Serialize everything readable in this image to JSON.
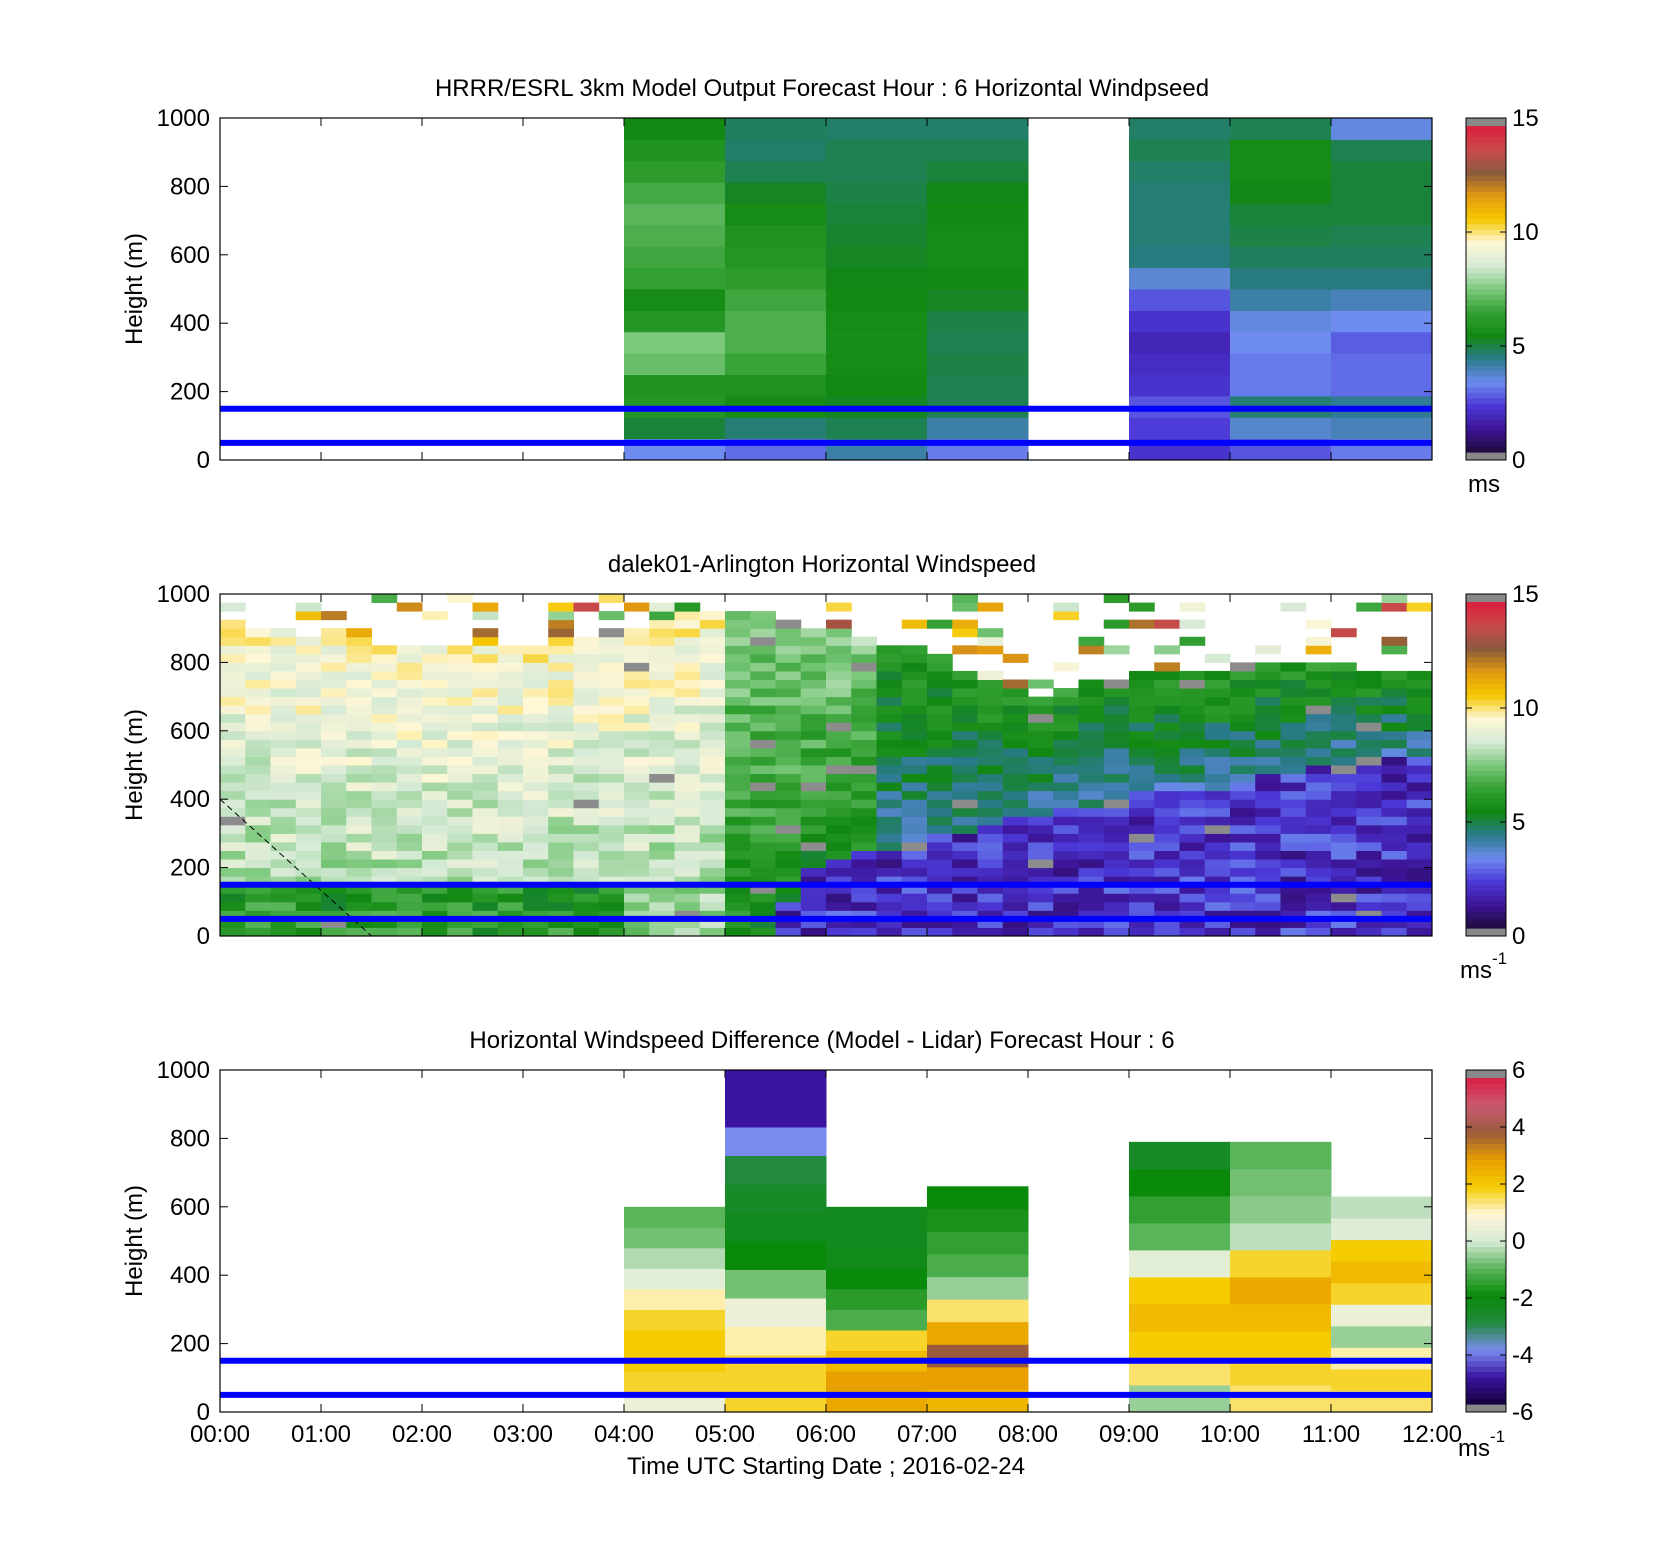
{
  "colors": {
    "blue_line": "#0000ff",
    "speed_colormap": [
      "#1e0a3c",
      "#3c1496",
      "#4b38d6",
      "#6e8cf0",
      "#2a7a8c",
      "#118811",
      "#33a033",
      "#7cc87c",
      "#d6ead6",
      "#fff7d6",
      "#f5c800",
      "#e39a10",
      "#8b5a3c",
      "#c84a4a",
      "#dc1e3c"
    ],
    "diff_colormap": [
      "#14003c",
      "#3a14a0",
      "#7a8cf0",
      "#218a3c",
      "#0a8a0a",
      "#5ab45a",
      "#d6ead6",
      "#fff6d6",
      "#f5cc00",
      "#e8a000",
      "#9b5a3c",
      "#c85a6e",
      "#dc1e46"
    ]
  },
  "chart_data": [
    {
      "type": "heatmap",
      "title": "HRRR/ESRL 3km Model Output   Forecast Hour : 6 Horizontal Windpseed",
      "xlabel": "",
      "ylabel": "Height (m)",
      "xlim": [
        0,
        12
      ],
      "ylim": [
        0,
        1000
      ],
      "yticks": [
        "0",
        "200",
        "400",
        "600",
        "800",
        "1000"
      ],
      "colorbar": {
        "min": 0,
        "max": 15,
        "ticks": [
          "0",
          "5",
          "10",
          "15"
        ],
        "unit": "ms",
        "unit_sup": ""
      },
      "reference_heights": [
        50,
        150
      ],
      "columns": [
        {
          "t_start": 4,
          "t_end": 5,
          "speeds": [
            3.2,
            5.0,
            6.0,
            5.8,
            7.2,
            7.5,
            6.0,
            5.5,
            6.4,
            6.6,
            6.8,
            7.0,
            6.7,
            6.2,
            5.8,
            5.4
          ]
        },
        {
          "t_start": 5,
          "t_end": 6,
          "speeds": [
            2.8,
            4.5,
            5.5,
            5.8,
            6.5,
            6.8,
            6.8,
            6.6,
            6.2,
            6.0,
            5.8,
            5.5,
            5.2,
            4.8,
            4.6,
            4.7
          ]
        },
        {
          "t_start": 6,
          "t_end": 7,
          "speeds": [
            4.0,
            4.8,
            5.2,
            5.4,
            5.5,
            5.6,
            5.5,
            5.4,
            5.3,
            5.2,
            5.1,
            5.0,
            4.9,
            4.8,
            4.8,
            4.6
          ]
        },
        {
          "t_start": 7,
          "t_end": 8,
          "speeds": [
            3.0,
            4.0,
            4.8,
            4.8,
            4.9,
            4.8,
            4.9,
            5.2,
            5.4,
            5.5,
            5.5,
            5.4,
            5.3,
            5.0,
            4.8,
            4.6
          ]
        },
        {
          "t_start": 9,
          "t_end": 10,
          "speeds": [
            2.0,
            2.2,
            2.5,
            2.0,
            1.8,
            1.6,
            2.0,
            2.5,
            3.5,
            4.4,
            4.5,
            4.5,
            4.5,
            4.6,
            4.8,
            4.6
          ]
        },
        {
          "t_start": 10,
          "t_end": 11,
          "speeds": [
            2.5,
            3.6,
            4.5,
            3.0,
            3.0,
            3.2,
            3.4,
            4.0,
            4.4,
            4.7,
            4.9,
            5.0,
            5.3,
            5.5,
            5.5,
            4.8
          ]
        },
        {
          "t_start": 11,
          "t_end": 12,
          "speeds": [
            3.0,
            3.8,
            4.2,
            2.8,
            2.8,
            2.6,
            3.2,
            3.8,
            4.4,
            4.7,
            4.8,
            5.0,
            5.0,
            5.0,
            4.8,
            3.4
          ]
        }
      ]
    },
    {
      "type": "heatmap",
      "title": "dalek01-Arlington  Horizontal Windspeed",
      "xlabel": "",
      "ylabel": "Height (m)",
      "xlim": [
        0,
        12
      ],
      "ylim": [
        0,
        1000
      ],
      "yticks": [
        "0",
        "200",
        "400",
        "600",
        "800",
        "1000"
      ],
      "colorbar": {
        "min": 0,
        "max": 15,
        "ticks": [
          "0",
          "5",
          "10",
          "15"
        ],
        "unit": "ms",
        "unit_sup": "-1"
      },
      "reference_heights": [
        50,
        150
      ],
      "profile_time_step": 0.25,
      "low_speed_layer_top": [
        {
          "t": 0,
          "h": 0
        },
        {
          "t": 5.5,
          "h": 0
        },
        {
          "t": 5.7,
          "h": 180
        },
        {
          "t": 6,
          "h": 230
        },
        {
          "t": 7,
          "h": 280
        },
        {
          "t": 8,
          "h": 350
        },
        {
          "t": 9,
          "h": 410
        },
        {
          "t": 10,
          "h": 440
        },
        {
          "t": 11,
          "h": 510
        },
        {
          "t": 12,
          "h": 530
        }
      ],
      "profile_top": [
        {
          "t": 0,
          "h": 930
        },
        {
          "t": 1,
          "h": 880
        },
        {
          "t": 2,
          "h": 850
        },
        {
          "t": 3,
          "h": 850
        },
        {
          "t": 4,
          "h": 900
        },
        {
          "t": 5,
          "h": 960
        },
        {
          "t": 6,
          "h": 900
        },
        {
          "t": 7,
          "h": 830
        },
        {
          "t": 8,
          "h": 700
        },
        {
          "t": 9,
          "h": 760
        },
        {
          "t": 10,
          "h": 780
        },
        {
          "t": 11,
          "h": 800
        },
        {
          "t": 12,
          "h": 760
        }
      ],
      "annotation": "dashed line from (0 h, 400 m) to (1.5 h, 0 m)"
    },
    {
      "type": "heatmap",
      "title": "Horizontal Windspeed Difference (Model - Lidar) Forecast Hour : 6",
      "xlabel": "Time UTC  Starting Date ; 2016-02-24",
      "ylabel": "Height (m)",
      "xlim": [
        0,
        12
      ],
      "ylim": [
        0,
        1000
      ],
      "xticks": [
        "00:00",
        "01:00",
        "02:00",
        "03:00",
        "04:00",
        "05:00",
        "06:00",
        "07:00",
        "08:00",
        "09:00",
        "10:00",
        "11:00",
        "12:00"
      ],
      "yticks": [
        "0",
        "200",
        "400",
        "600",
        "800",
        "1000"
      ],
      "colorbar": {
        "min": -6,
        "max": 6,
        "ticks": [
          "-6",
          "-4",
          "-2",
          "0",
          "2",
          "4",
          "6"
        ],
        "unit": "ms",
        "unit_sup": "-1"
      },
      "reference_heights": [
        50,
        150
      ],
      "columns": [
        {
          "t_start": 4,
          "t_end": 5,
          "top": 600,
          "diffs": [
            0.5,
            1.8,
            2.0,
            2.0,
            1.8,
            1.2,
            0.3,
            -0.3,
            -0.8,
            -1.0
          ]
        },
        {
          "t_start": 5,
          "t_end": 6,
          "top": 1000,
          "diffs": [
            1.8,
            1.8,
            1.2,
            0.5,
            -0.8,
            -2.0,
            -2.4,
            -2.6,
            -3.0,
            -4.0,
            -5.0,
            -5.0
          ]
        },
        {
          "t_start": 6,
          "t_end": 7,
          "top": 600,
          "diffs": [
            2.8,
            3.0,
            2.4,
            1.8,
            -1.2,
            -1.6,
            -2.0,
            -2.3,
            -2.4,
            -2.4
          ]
        },
        {
          "t_start": 7,
          "t_end": 8,
          "top": 660,
          "diffs": [
            2.5,
            3.0,
            4.0,
            2.8,
            1.5,
            -0.5,
            -1.2,
            -1.5,
            -1.8,
            -2.0
          ]
        },
        {
          "t_start": 9,
          "t_end": 10,
          "top": 790,
          "diffs": [
            -0.5,
            1.5,
            2.0,
            2.4,
            2.0,
            0.3,
            -1.0,
            -1.5,
            -2.0,
            -2.6
          ]
        },
        {
          "t_start": 10,
          "t_end": 11,
          "top": 790,
          "diffs": [
            1.5,
            1.8,
            2.0,
            2.4,
            2.8,
            1.8,
            -0.2,
            -0.6,
            -0.8,
            -1.0
          ]
        },
        {
          "t_start": 11,
          "t_end": 12,
          "top": 630,
          "diffs": [
            1.5,
            1.8,
            1.2,
            -0.5,
            0.5,
            1.8,
            2.4,
            2.0,
            0.2,
            -0.2
          ]
        }
      ]
    }
  ]
}
